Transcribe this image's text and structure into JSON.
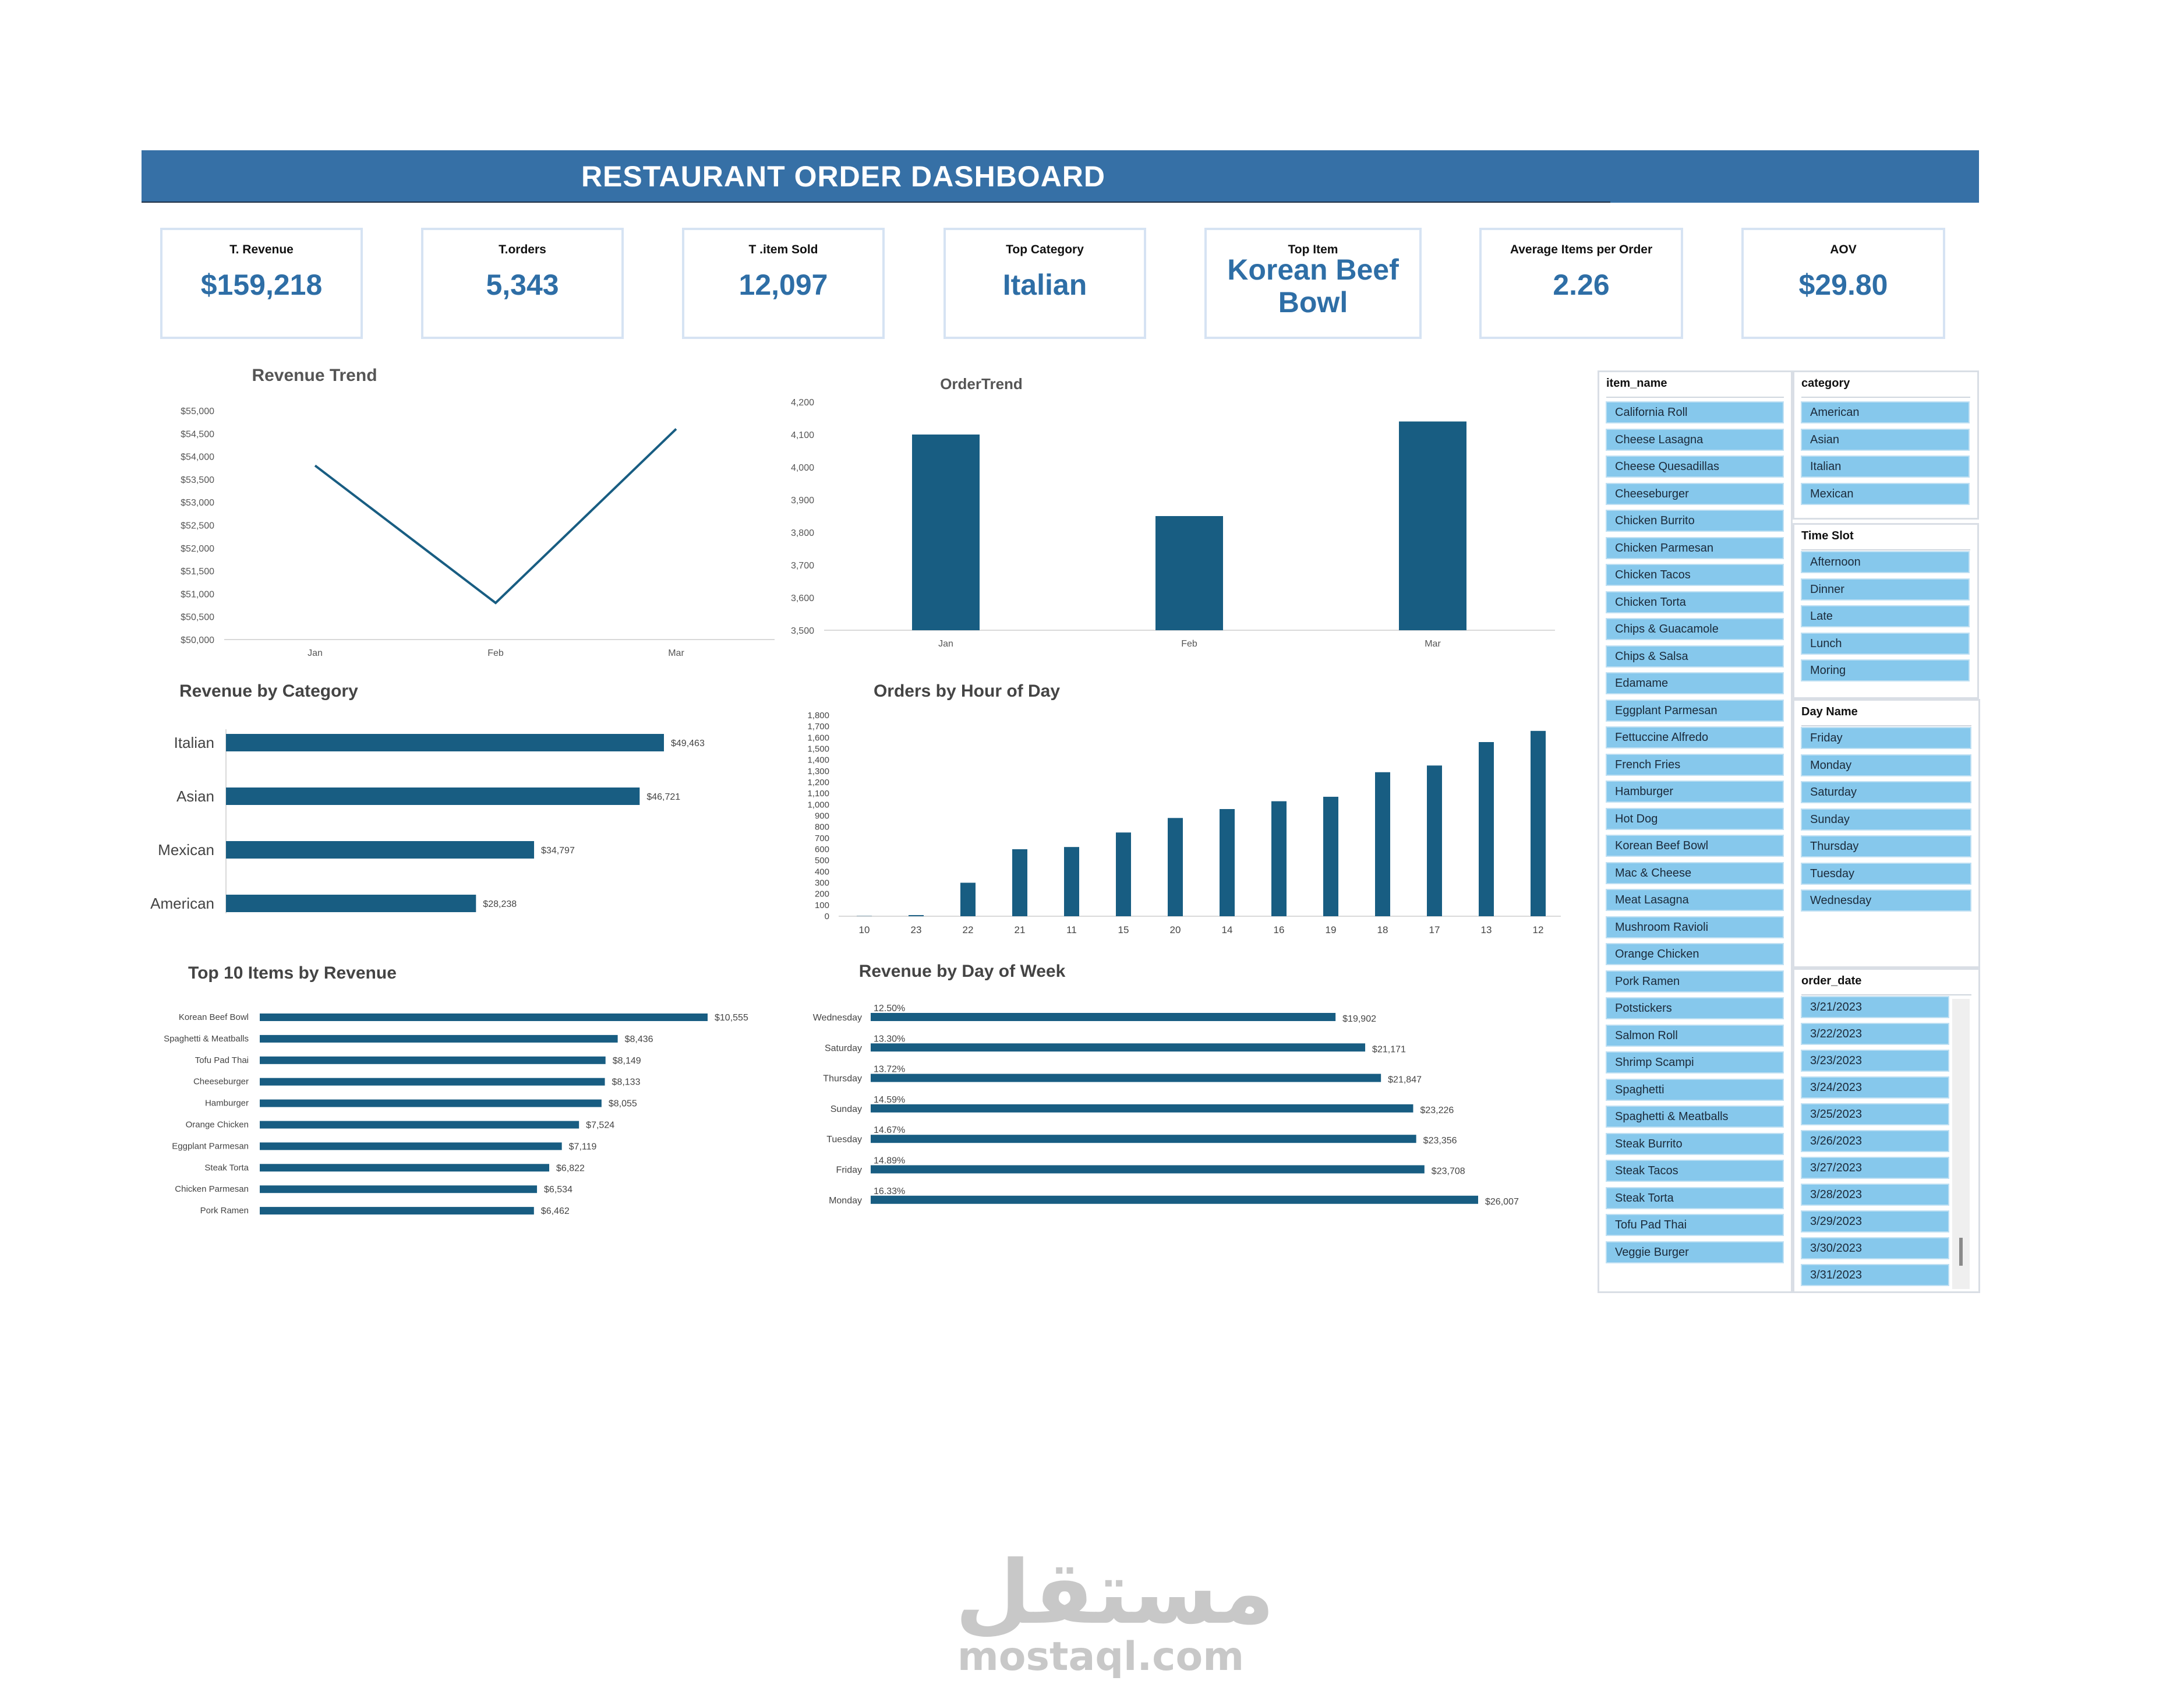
{
  "title": "RESTAURANT ORDER DASHBOARD",
  "kpis": [
    {
      "label": "T. Revenue",
      "value": "$159,218"
    },
    {
      "label": "T.orders",
      "value": "5,343"
    },
    {
      "label": "T .item Sold",
      "value": "12,097"
    },
    {
      "label": "Top Category",
      "value": "Italian"
    },
    {
      "label": "Top Item",
      "value": "Korean Beef Bowl"
    },
    {
      "label": "Average Items per Order",
      "value": "2.26"
    },
    {
      "label": "AOV",
      "value": "$29.80"
    }
  ],
  "colors": {
    "bar": "#185d82",
    "accent": "#3670a6",
    "kpi_value": "#2e6ea6",
    "slicer_item": "#86c8ec"
  },
  "chart_data": [
    {
      "id": "revenue_trend",
      "type": "line",
      "title": "Revenue  Trend",
      "categories": [
        "Jan",
        "Feb",
        "Mar"
      ],
      "values": [
        53800,
        50800,
        54600
      ],
      "ylim": [
        50000,
        55000
      ],
      "yticks": [
        "$50,000",
        "$50,500",
        "$51,000",
        "$51,500",
        "$52,000",
        "$52,500",
        "$53,000",
        "$53,500",
        "$54,000",
        "$54,500",
        "$55,000"
      ]
    },
    {
      "id": "order_trend",
      "type": "bar",
      "title": "OrderTrend",
      "categories": [
        "Jan",
        "Feb",
        "Mar"
      ],
      "values": [
        4100,
        3850,
        4140
      ],
      "ylim": [
        3500,
        4200
      ],
      "yticks": [
        "3,500",
        "3,600",
        "3,700",
        "3,800",
        "3,900",
        "4,000",
        "4,100",
        "4,200"
      ]
    },
    {
      "id": "revenue_by_category",
      "type": "bar",
      "orientation": "horizontal",
      "title": "Revenue by Category",
      "categories": [
        "Italian",
        "Asian",
        "Mexican",
        "American"
      ],
      "values": [
        49463,
        46721,
        34797,
        28238
      ],
      "labels": [
        "$49,463",
        "$46,721",
        "$34,797",
        "$28,238"
      ]
    },
    {
      "id": "orders_by_hour",
      "type": "bar",
      "title": "Orders by Hour of Day",
      "categories": [
        "10",
        "23",
        "22",
        "21",
        "11",
        "15",
        "20",
        "14",
        "16",
        "19",
        "18",
        "17",
        "13",
        "12"
      ],
      "values": [
        2,
        10,
        300,
        600,
        620,
        750,
        880,
        960,
        1030,
        1070,
        1290,
        1350,
        1560,
        1660
      ],
      "ylim": [
        0,
        1800
      ],
      "yticks": [
        "0",
        "100",
        "200",
        "300",
        "400",
        "500",
        "600",
        "700",
        "800",
        "900",
        "1,000",
        "1,100",
        "1,200",
        "1,300",
        "1,400",
        "1,500",
        "1,600",
        "1,700",
        "1,800"
      ]
    },
    {
      "id": "top10_items",
      "type": "bar",
      "orientation": "horizontal",
      "title": "Top 10 Items by Revenue",
      "categories": [
        "Korean Beef Bowl",
        "Spaghetti & Meatballs",
        "Tofu Pad Thai",
        "Cheeseburger",
        "Hamburger",
        "Orange Chicken",
        "Eggplant Parmesan",
        "Steak Torta",
        "Chicken Parmesan",
        "Pork Ramen"
      ],
      "values": [
        10555,
        8436,
        8149,
        8133,
        8055,
        7524,
        7119,
        6822,
        6534,
        6462
      ],
      "labels": [
        "$10,555",
        "$8,436",
        "$8,149",
        "$8,133",
        "$8,055",
        "$7,524",
        "$7,119",
        "$6,822",
        "$6,534",
        "$6,462"
      ]
    },
    {
      "id": "revenue_by_day",
      "type": "bar",
      "orientation": "horizontal",
      "title": "Revenue by Day of Week",
      "categories": [
        "Wednesday",
        "Saturday",
        "Thursday",
        "Sunday",
        "Tuesday",
        "Friday",
        "Monday"
      ],
      "values": [
        19902,
        21171,
        21847,
        23226,
        23356,
        23708,
        26007
      ],
      "labels": [
        "$19,902",
        "$21,171",
        "$21,847",
        "$23,226",
        "$23,356",
        "$23,708",
        "$26,007"
      ],
      "percents": [
        "12.50%",
        "13.30%",
        "13.72%",
        "14.59%",
        "14.67%",
        "14.89%",
        "16.33%"
      ]
    }
  ],
  "slicers": {
    "item_name": {
      "header": "item_name",
      "items": [
        "California Roll",
        "Cheese Lasagna",
        "Cheese Quesadillas",
        "Cheeseburger",
        "Chicken Burrito",
        "Chicken Parmesan",
        "Chicken Tacos",
        "Chicken Torta",
        "Chips & Guacamole",
        "Chips & Salsa",
        "Edamame",
        "Eggplant Parmesan",
        "Fettuccine Alfredo",
        "French Fries",
        "Hamburger",
        "Hot Dog",
        "Korean Beef Bowl",
        "Mac & Cheese",
        "Meat Lasagna",
        "Mushroom Ravioli",
        "Orange Chicken",
        "Pork Ramen",
        "Potstickers",
        "Salmon Roll",
        "Shrimp Scampi",
        "Spaghetti",
        "Spaghetti & Meatballs",
        "Steak Burrito",
        "Steak Tacos",
        "Steak Torta",
        "Tofu Pad Thai",
        "Veggie Burger"
      ]
    },
    "category": {
      "header": "category",
      "items": [
        "American",
        "Asian",
        "Italian",
        "Mexican"
      ]
    },
    "time_slot": {
      "header": "Time Slot",
      "items": [
        "Afternoon",
        "Dinner",
        "Late",
        "Lunch",
        "Moring"
      ]
    },
    "day_name": {
      "header": "Day Name",
      "items": [
        "Friday",
        "Monday",
        "Saturday",
        "Sunday",
        "Thursday",
        "Tuesday",
        "Wednesday"
      ]
    },
    "order_date": {
      "header": "order_date",
      "items": [
        "3/21/2023",
        "3/22/2023",
        "3/23/2023",
        "3/24/2023",
        "3/25/2023",
        "3/26/2023",
        "3/27/2023",
        "3/28/2023",
        "3/29/2023",
        "3/30/2023",
        "3/31/2023"
      ]
    }
  },
  "watermark": {
    "arabic": "مستقل",
    "latin": "mostaql.com"
  }
}
